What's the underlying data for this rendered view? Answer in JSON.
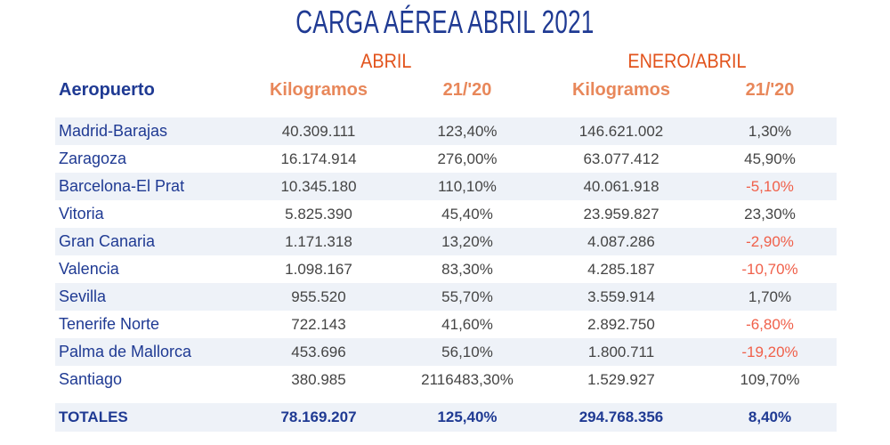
{
  "title": "CARGA AÉREA ABRIL 2021",
  "sections": {
    "month": "ABRIL",
    "ytd": "ENERO/ABRIL"
  },
  "headers": {
    "airport": "Aeropuerto",
    "kg": "Kilogramos",
    "pct": "21/'20",
    "kg2": "Kilogramos",
    "pct2": "21/'20"
  },
  "rows": [
    {
      "name": "Madrid-Barajas",
      "kg": "40.309.111",
      "pct": "123,40%",
      "kg2": "146.621.002",
      "pct2": "1,30%"
    },
    {
      "name": "Zaragoza",
      "kg": "16.174.914",
      "pct": "276,00%",
      "kg2": "63.077.412",
      "pct2": "45,90%"
    },
    {
      "name": "Barcelona-El Prat",
      "kg": "10.345.180",
      "pct": "110,10%",
      "kg2": "40.061.918",
      "pct2": "-5,10%"
    },
    {
      "name": "Vitoria",
      "kg": "5.825.390",
      "pct": "45,40%",
      "kg2": "23.959.827",
      "pct2": "23,30%"
    },
    {
      "name": "Gran Canaria",
      "kg": "1.171.318",
      "pct": "13,20%",
      "kg2": "4.087.286",
      "pct2": "-2,90%"
    },
    {
      "name": "Valencia",
      "kg": "1.098.167",
      "pct": "83,30%",
      "kg2": "4.285.187",
      "pct2": "-10,70%"
    },
    {
      "name": "Sevilla",
      "kg": "955.520",
      "pct": "55,70%",
      "kg2": "3.559.914",
      "pct2": "1,70%"
    },
    {
      "name": "Tenerife Norte",
      "kg": "722.143",
      "pct": "41,60%",
      "kg2": "2.892.750",
      "pct2": "-6,80%"
    },
    {
      "name": "Palma de Mallorca",
      "kg": "453.696",
      "pct": "56,10%",
      "kg2": "1.800.711",
      "pct2": "-19,20%"
    },
    {
      "name": "Santiago",
      "kg": "380.985",
      "pct": "2116483,30%",
      "kg2": "1.529.927",
      "pct2": "109,70%"
    }
  ],
  "totals": {
    "label": "TOTALES",
    "kg": "78.169.207",
    "pct": "125,40%",
    "kg2": "294.768.356",
    "pct2": "8,40%"
  },
  "colors": {
    "blue": "#1f3a93",
    "orange": "#e2531c",
    "negative": "#f0604a"
  }
}
